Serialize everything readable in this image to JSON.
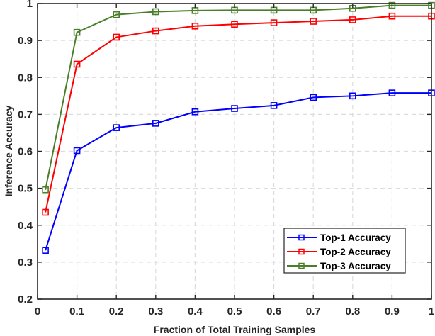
{
  "chart_data": {
    "type": "line",
    "title": "",
    "xlabel": "Fraction of Total Training Samples",
    "ylabel": "Inference Accuracy",
    "xlim": [
      0,
      1
    ],
    "ylim": [
      0.2,
      1
    ],
    "xticks": [
      0,
      0.1,
      0.2,
      0.3,
      0.4,
      0.5,
      0.6,
      0.7,
      0.8,
      0.9,
      1
    ],
    "xtick_labels": [
      "0",
      "0.1",
      "0.2",
      "0.3",
      "0.4",
      "0.5",
      "0.6",
      "0.7",
      "0.8",
      "0.9",
      "1"
    ],
    "yticks": [
      0.2,
      0.3,
      0.4,
      0.5,
      0.6,
      0.7,
      0.8,
      0.9,
      1
    ],
    "ytick_labels": [
      "0.2",
      "0.3",
      "0.4",
      "0.5",
      "0.6",
      "0.7",
      "0.8",
      "0.9",
      "1"
    ],
    "grid": true,
    "grid_style": "dashed",
    "legend_position": "lower right",
    "marker": "square",
    "x": [
      0.02,
      0.1,
      0.2,
      0.3,
      0.4,
      0.5,
      0.6,
      0.7,
      0.8,
      0.9,
      1.0
    ],
    "series": [
      {
        "name": "Top-1 Accuracy",
        "color": "#0000ff",
        "values": [
          0.332,
          0.602,
          0.664,
          0.676,
          0.707,
          0.716,
          0.724,
          0.746,
          0.75,
          0.758,
          0.758
        ]
      },
      {
        "name": "Top-2 Accuracy",
        "color": "#ff0000",
        "values": [
          0.435,
          0.836,
          0.909,
          0.926,
          0.939,
          0.944,
          0.948,
          0.952,
          0.956,
          0.966,
          0.966
        ]
      },
      {
        "name": "Top-3 Accuracy",
        "color": "#4a7f2a",
        "values": [
          0.496,
          0.922,
          0.97,
          0.978,
          0.981,
          0.982,
          0.982,
          0.982,
          0.987,
          0.995,
          0.995
        ]
      }
    ]
  }
}
